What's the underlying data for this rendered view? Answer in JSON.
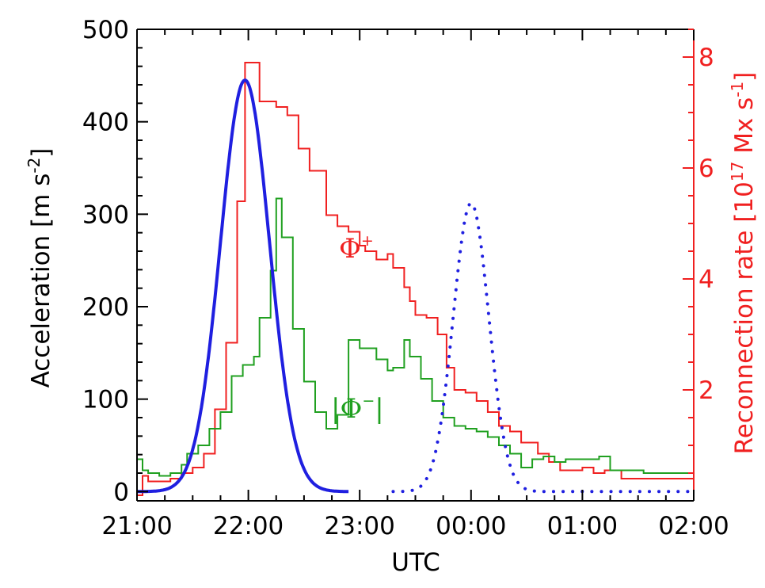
{
  "chart_data": {
    "type": "line",
    "xlabel": "UTC",
    "ylabel_left": "Acceleration [m s",
    "ylabel_left_sup": "-2",
    "ylabel_left_end": "]",
    "ylabel_right": "Reconnection rate [10",
    "ylabel_right_sup1": "17",
    "ylabel_right_mid": " Mx s",
    "ylabel_right_sup2": "-1",
    "ylabel_right_end": "]",
    "x_ticks": [
      "21:00",
      "22:00",
      "23:00",
      "00:00",
      "01:00",
      "02:00"
    ],
    "xlim_hours": [
      21,
      26
    ],
    "ylim_left": [
      -10,
      500
    ],
    "left_ticks": [
      0,
      100,
      200,
      300,
      400,
      500
    ],
    "ylim_right": [
      0,
      8.5
    ],
    "right_ticks": [
      2,
      4,
      6,
      8
    ],
    "colors": {
      "accel": "#1f1fe0",
      "phi_plus": "#f02020",
      "phi_minus": "#20a020",
      "axis_left": "#000000",
      "axis_right": "#f02020"
    },
    "annotations": {
      "phi_plus_base": "Φ",
      "phi_plus_sup": "+",
      "phi_minus_base": "|Φ",
      "phi_minus_sup": "−",
      "phi_minus_end": "|"
    },
    "series": [
      {
        "axis": "left",
        "style": "solid",
        "values_desc": "gaussian peak",
        "gaussian": {
          "peak": 445,
          "center_hour": 21.97,
          "sigma_hour": 0.22,
          "range_hours": [
            21,
            22.9
          ]
        }
      },
      {
        "axis": "left",
        "style": "dotted",
        "gaussian": {
          "peak": 312,
          "center_hour": 24.0,
          "sigma_hour": 0.16,
          "range_hours": [
            23.3,
            26
          ]
        }
      },
      {
        "axis": "right",
        "style": "step",
        "steps": [
          [
            21.0,
            0.1
          ],
          [
            21.05,
            0.45
          ],
          [
            21.1,
            0.35
          ],
          [
            21.2,
            0.35
          ],
          [
            21.3,
            0.4
          ],
          [
            21.4,
            0.5
          ],
          [
            21.5,
            0.6
          ],
          [
            21.6,
            0.85
          ],
          [
            21.7,
            1.65
          ],
          [
            21.8,
            2.85
          ],
          [
            21.9,
            5.4
          ],
          [
            21.97,
            7.9
          ],
          [
            22.1,
            7.2
          ],
          [
            22.25,
            7.1
          ],
          [
            22.35,
            6.95
          ],
          [
            22.45,
            6.35
          ],
          [
            22.55,
            5.95
          ],
          [
            22.7,
            5.15
          ],
          [
            22.8,
            4.95
          ],
          [
            22.9,
            4.85
          ],
          [
            23.0,
            4.6
          ],
          [
            23.05,
            4.5
          ],
          [
            23.15,
            4.35
          ],
          [
            23.25,
            4.45
          ],
          [
            23.3,
            4.2
          ],
          [
            23.4,
            3.85
          ],
          [
            23.45,
            3.6
          ],
          [
            23.5,
            3.35
          ],
          [
            23.6,
            3.3
          ],
          [
            23.7,
            3.0
          ],
          [
            23.78,
            2.4
          ],
          [
            23.85,
            2.0
          ],
          [
            23.95,
            1.95
          ],
          [
            24.05,
            1.8
          ],
          [
            24.15,
            1.6
          ],
          [
            24.25,
            1.35
          ],
          [
            24.35,
            1.25
          ],
          [
            24.45,
            1.05
          ],
          [
            24.6,
            0.85
          ],
          [
            24.7,
            0.7
          ],
          [
            24.8,
            0.55
          ],
          [
            25.0,
            0.6
          ],
          [
            25.1,
            0.5
          ],
          [
            25.2,
            0.55
          ],
          [
            25.35,
            0.4
          ],
          [
            25.8,
            0.4
          ],
          [
            26.0,
            0.4
          ]
        ]
      },
      {
        "axis": "right",
        "style": "step",
        "steps": [
          [
            21.0,
            0.75
          ],
          [
            21.05,
            0.55
          ],
          [
            21.1,
            0.5
          ],
          [
            21.2,
            0.45
          ],
          [
            21.3,
            0.5
          ],
          [
            21.4,
            0.65
          ],
          [
            21.45,
            0.85
          ],
          [
            21.55,
            1.0
          ],
          [
            21.65,
            1.3
          ],
          [
            21.75,
            1.6
          ],
          [
            21.85,
            2.25
          ],
          [
            21.95,
            2.45
          ],
          [
            22.05,
            2.6
          ],
          [
            22.1,
            3.3
          ],
          [
            22.2,
            4.15
          ],
          [
            22.25,
            5.45
          ],
          [
            22.3,
            4.75
          ],
          [
            22.4,
            3.1
          ],
          [
            22.5,
            2.15
          ],
          [
            22.6,
            1.6
          ],
          [
            22.7,
            1.3
          ],
          [
            22.8,
            1.55
          ],
          [
            22.9,
            2.9
          ],
          [
            23.0,
            2.75
          ],
          [
            23.15,
            2.55
          ],
          [
            23.25,
            2.35
          ],
          [
            23.3,
            2.4
          ],
          [
            23.4,
            2.9
          ],
          [
            23.45,
            2.6
          ],
          [
            23.55,
            2.2
          ],
          [
            23.65,
            1.8
          ],
          [
            23.75,
            1.5
          ],
          [
            23.85,
            1.35
          ],
          [
            23.95,
            1.3
          ],
          [
            24.05,
            1.25
          ],
          [
            24.15,
            1.15
          ],
          [
            24.25,
            1.0
          ],
          [
            24.35,
            0.85
          ],
          [
            24.45,
            0.6
          ],
          [
            24.55,
            0.75
          ],
          [
            24.65,
            0.8
          ],
          [
            24.75,
            0.7
          ],
          [
            24.85,
            0.75
          ],
          [
            25.0,
            0.75
          ],
          [
            25.15,
            0.8
          ],
          [
            25.25,
            0.55
          ],
          [
            25.55,
            0.5
          ],
          [
            25.85,
            0.5
          ],
          [
            26.0,
            0.5
          ]
        ]
      }
    ]
  }
}
